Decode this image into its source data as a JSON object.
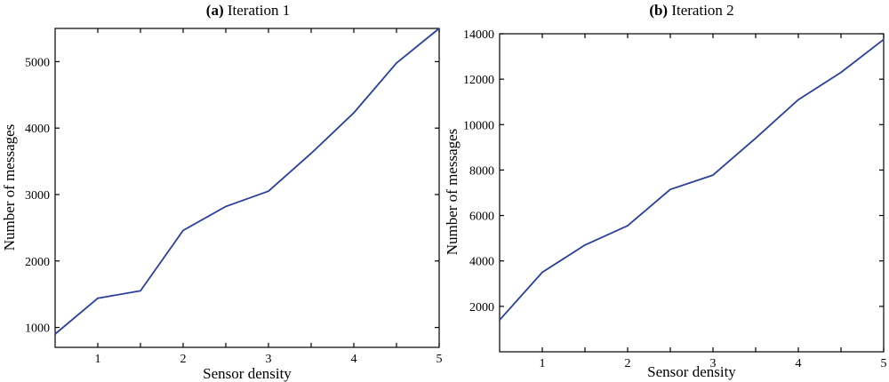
{
  "chart_data": [
    {
      "type": "line",
      "title_tag": "(a)",
      "title": "Iteration 1",
      "xlabel": "Sensor density",
      "ylabel": "Number of messages",
      "xlim": [
        0.5,
        5
      ],
      "ylim": [
        700,
        5500
      ],
      "xticks": [
        1,
        2,
        3,
        4,
        5
      ],
      "yticks": [
        1000,
        2000,
        3000,
        4000,
        5000
      ],
      "grid": false,
      "series": [
        {
          "color": "#2a3f9c",
          "x": [
            0.5,
            1,
            1.5,
            2,
            2.5,
            3,
            3.5,
            4,
            4.5,
            5
          ],
          "y": [
            900,
            1440,
            1550,
            2460,
            2820,
            3050,
            3620,
            4230,
            4980,
            5500
          ]
        }
      ]
    },
    {
      "type": "line",
      "title_tag": "(b)",
      "title": "Iteration 2",
      "xlabel": "Sensor density",
      "ylabel": "Number of messages",
      "xlim": [
        0.5,
        5
      ],
      "ylim": [
        0,
        14000
      ],
      "xticks": [
        1,
        2,
        3,
        4,
        5
      ],
      "yticks": [
        2000,
        4000,
        6000,
        8000,
        10000,
        12000,
        14000
      ],
      "grid": false,
      "series": [
        {
          "color": "#2a3f9c",
          "x": [
            0.5,
            1,
            1.5,
            2,
            2.5,
            3,
            3.5,
            4,
            4.5,
            5
          ],
          "y": [
            1400,
            3500,
            4700,
            5550,
            7150,
            7780,
            9400,
            11100,
            12300,
            13750
          ]
        }
      ]
    }
  ]
}
